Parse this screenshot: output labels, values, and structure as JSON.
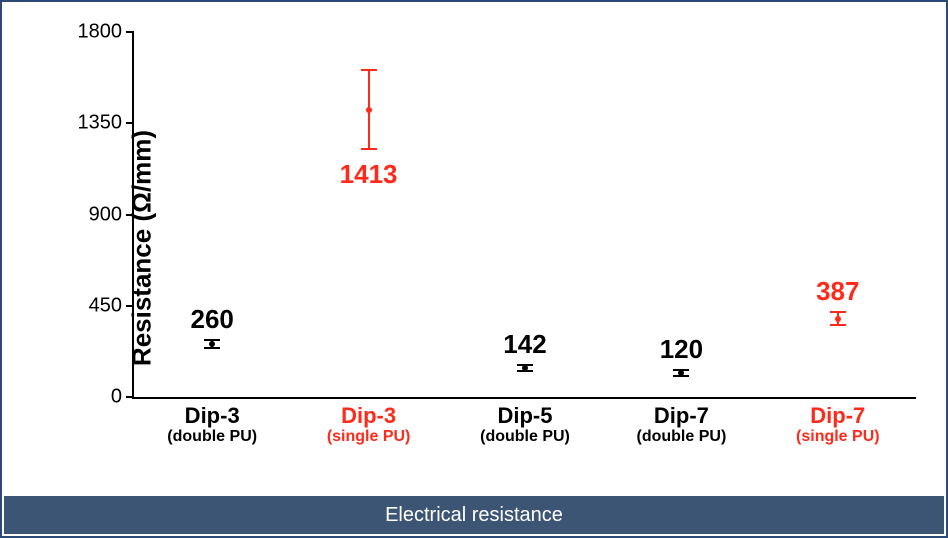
{
  "caption": "Electrical resistance",
  "chart": {
    "type": "scatter-errorbar",
    "ylabel": "Resistance (Ω/mm)",
    "ylim": [
      0,
      1800
    ],
    "ytick_step": 450,
    "yticks": [
      0,
      450,
      900,
      1350,
      1800
    ],
    "ytick_fontsize": 20,
    "ylabel_fontsize": 26,
    "xlabel_main_fontsize": 22,
    "xlabel_sub_fontsize": 16,
    "value_label_fontsize": 26,
    "background_color": "#ffffff",
    "axis_color": "#000000",
    "caption_bg": "#3d5574",
    "caption_color": "#ffffff",
    "border_color": "#2b4a78",
    "points": [
      {
        "label_main": "Dip-3",
        "label_sub": "(double PU)",
        "value": 260,
        "err_low": 20,
        "err_high": 20,
        "color": "#000000",
        "value_label": "260",
        "value_label_pos": "above"
      },
      {
        "label_main": "Dip-3",
        "label_sub": "(single PU)",
        "value": 1413,
        "err_low": 190,
        "err_high": 200,
        "color": "#ff2a1a",
        "value_label": "1413",
        "value_label_pos": "below"
      },
      {
        "label_main": "Dip-5",
        "label_sub": "(double PU)",
        "value": 142,
        "err_low": 15,
        "err_high": 15,
        "color": "#000000",
        "value_label": "142",
        "value_label_pos": "above"
      },
      {
        "label_main": "Dip-7",
        "label_sub": "(double PU)",
        "value": 120,
        "err_low": 15,
        "err_high": 15,
        "color": "#000000",
        "value_label": "120",
        "value_label_pos": "above"
      },
      {
        "label_main": "Dip-7",
        "label_sub": "(single PU)",
        "value": 387,
        "err_low": 30,
        "err_high": 30,
        "color": "#ff2a1a",
        "value_label": "387",
        "value_label_pos": "above"
      }
    ],
    "err_cap_halfwidth": 8,
    "marker_size": 6
  }
}
